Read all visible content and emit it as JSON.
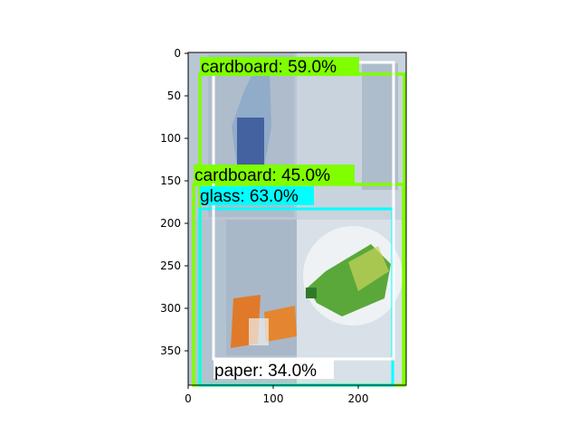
{
  "figure": {
    "x_ticks": [
      "0",
      "100",
      "200"
    ],
    "y_ticks": [
      "0",
      "50",
      "100",
      "150",
      "200",
      "250",
      "300",
      "350"
    ]
  },
  "colors": {
    "photo_left_bg": "#b9c6d3",
    "photo_right_bg": "#c9d3de",
    "cardboard_box": "#b3c2d1",
    "bottle_blue": "#3c5a9a",
    "bottle_green": "#5aa83a",
    "orange_paper": "#e07a2a",
    "label_green": "#7fff00",
    "label_cyan": "#00ffff",
    "label_white": "#ffffff"
  },
  "detections": [
    {
      "label": "cardboard: 59.0%",
      "class": "cardboard",
      "score": 59.0,
      "color": "#7fff00"
    },
    {
      "label": "cardboard: 45.0%",
      "class": "cardboard",
      "score": 45.0,
      "color": "#7fff00"
    },
    {
      "label": "glass: 63.0%",
      "class": "glass",
      "score": 63.0,
      "color": "#00ffff"
    },
    {
      "label": "paper: 34.0%",
      "class": "paper",
      "score": 34.0,
      "color": "#ffffff"
    }
  ]
}
